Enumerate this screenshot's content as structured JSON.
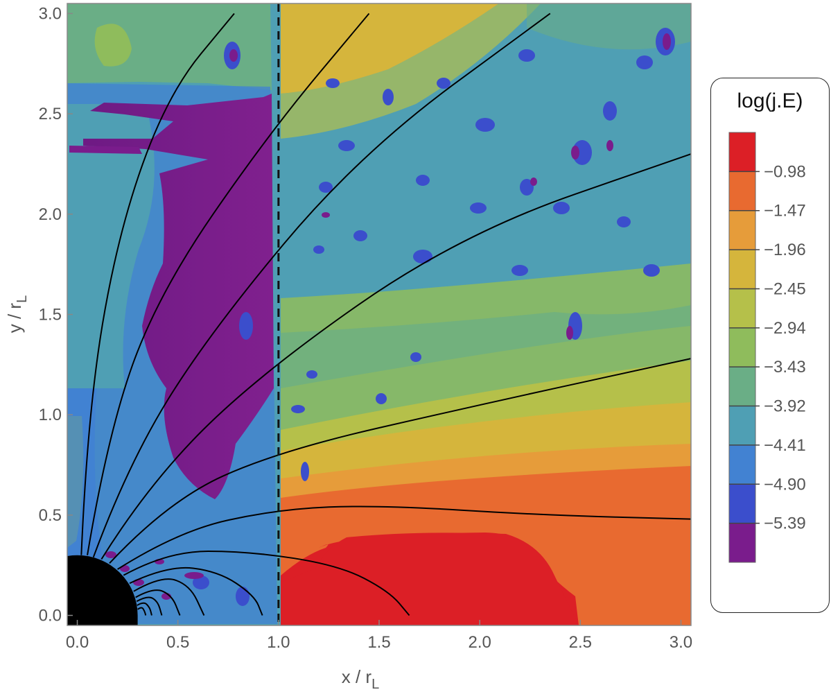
{
  "chart_data": {
    "type": "heatmap",
    "title": "",
    "xlabel": "x / r",
    "xlabel_sub": "L",
    "ylabel": "y / r",
    "ylabel_sub": "L",
    "xlim": [
      -0.05,
      3.05
    ],
    "ylim": [
      -0.05,
      3.05
    ],
    "x_ticks": [
      0.0,
      0.5,
      1.0,
      1.5,
      2.0,
      2.5,
      3.0
    ],
    "x_tick_labels": [
      "0.0",
      "0.5",
      "1.0",
      "1.5",
      "2.0",
      "2.5",
      "3.0"
    ],
    "y_ticks": [
      0.0,
      0.5,
      1.0,
      1.5,
      2.0,
      2.5,
      3.0
    ],
    "y_tick_labels": [
      "0.0",
      "0.5",
      "1.0",
      "1.5",
      "2.0",
      "2.5",
      "3.0"
    ],
    "legend": {
      "title": "log(j.E)",
      "placement": "right",
      "levels": [
        "-0.98",
        "-1.47",
        "-1.96",
        "-2.45",
        "-2.94",
        "-3.43",
        "-3.92",
        "-4.41",
        "-4.90",
        "-5.39"
      ],
      "level_labels": [
        "−0.98",
        "−1.47",
        "−1.96",
        "−2.45",
        "−2.94",
        "−3.43",
        "−3.92",
        "−4.41",
        "−4.90",
        "−5.39"
      ],
      "colors": [
        "#dc1f26",
        "#e86a30",
        "#e69c3a",
        "#d5b53c",
        "#b5c04a",
        "#8fbc5c",
        "#6aae86",
        "#4f9fb4",
        "#4282d2",
        "#3b4ecc",
        "#7a1c8c"
      ]
    },
    "light_cylinder_x": 1.0,
    "star_radius": 0.3,
    "colors": {
      "field_line": "#000000",
      "star": "#000000",
      "light_cylinder": "#111111"
    }
  }
}
